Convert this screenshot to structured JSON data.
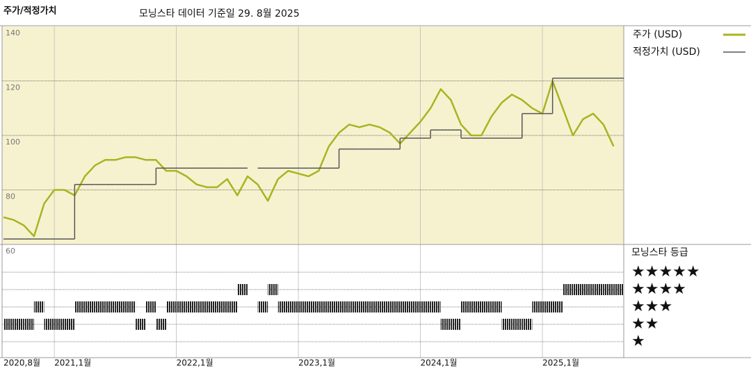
{
  "chart_data": [
    {
      "type": "line",
      "title": "주가/적정가치",
      "subtitle": "모닝스타 데이터 기준일 29. 8월 2025",
      "background": "#f6f2cf",
      "grid": true,
      "x": [
        "2020-08",
        "2020-09",
        "2020-10",
        "2020-11",
        "2020-12",
        "2021-01",
        "2021-02",
        "2021-03",
        "2021-04",
        "2021-05",
        "2021-06",
        "2021-07",
        "2021-08",
        "2021-09",
        "2021-10",
        "2021-11",
        "2021-12",
        "2022-01",
        "2022-02",
        "2022-03",
        "2022-04",
        "2022-05",
        "2022-06",
        "2022-07",
        "2022-08",
        "2022-09",
        "2022-10",
        "2022-11",
        "2022-12",
        "2023-01",
        "2023-02",
        "2023-03",
        "2023-04",
        "2023-05",
        "2023-06",
        "2023-07",
        "2023-08",
        "2023-09",
        "2023-10",
        "2023-11",
        "2023-12",
        "2024-01",
        "2024-02",
        "2024-03",
        "2024-04",
        "2024-05",
        "2024-06",
        "2024-07",
        "2024-08",
        "2024-09",
        "2024-10",
        "2024-11",
        "2024-12",
        "2025-01",
        "2025-02",
        "2025-03",
        "2025-04",
        "2025-05",
        "2025-06",
        "2025-07",
        "2025-08"
      ],
      "series": [
        {
          "name": "주가 (USD)",
          "color": "#a9b321",
          "line_shape": "linear",
          "values": [
            70,
            69,
            67,
            63,
            75,
            80,
            80,
            78,
            85,
            89,
            91,
            91,
            92,
            92,
            91,
            91,
            87,
            87,
            85,
            82,
            81,
            81,
            84,
            78,
            85,
            82,
            76,
            84,
            87,
            86,
            85,
            87,
            96,
            101,
            104,
            103,
            104,
            103,
            101,
            97,
            101,
            105,
            110,
            117,
            113,
            104,
            100,
            100,
            107,
            112,
            115,
            113,
            110,
            108,
            120,
            110,
            100,
            106,
            108,
            104,
            96
          ]
        },
        {
          "name": "적정가치 (USD)",
          "color": "#555555",
          "line_shape": "step",
          "values": [
            62,
            62,
            62,
            62,
            62,
            62,
            62,
            82,
            82,
            82,
            82,
            82,
            82,
            82,
            82,
            88,
            88,
            88,
            88,
            88,
            88,
            88,
            88,
            88,
            null,
            88,
            88,
            88,
            88,
            88,
            88,
            88,
            88,
            95,
            95,
            95,
            95,
            95,
            95,
            99,
            99,
            99,
            102,
            102,
            102,
            99,
            99,
            99,
            99,
            99,
            99,
            108,
            108,
            108,
            121,
            121,
            121,
            121,
            121,
            121,
            121
          ]
        }
      ],
      "xlim": [
        "2020-08",
        "2025-09"
      ],
      "ylim": [
        60,
        140
      ],
      "yticks": [
        60,
        80,
        100,
        120,
        140
      ]
    },
    {
      "type": "rating",
      "title": "모닝스타 등급",
      "color": "#222222",
      "levels": [
        {
          "value": 5,
          "label": "★★★★★"
        },
        {
          "value": 4,
          "label": "★★★★"
        },
        {
          "value": 3,
          "label": "★★★"
        },
        {
          "value": 2,
          "label": "★★"
        },
        {
          "value": 1,
          "label": "★"
        }
      ],
      "x": [
        "2020-08",
        "2020-09",
        "2020-10",
        "2020-11",
        "2020-12",
        "2021-01",
        "2021-02",
        "2021-03",
        "2021-04",
        "2021-05",
        "2021-06",
        "2021-07",
        "2021-08",
        "2021-09",
        "2021-10",
        "2021-11",
        "2021-12",
        "2022-01",
        "2022-02",
        "2022-03",
        "2022-04",
        "2022-05",
        "2022-06",
        "2022-07",
        "2022-08",
        "2022-09",
        "2022-10",
        "2022-11",
        "2022-12",
        "2023-01",
        "2023-02",
        "2023-03",
        "2023-04",
        "2023-05",
        "2023-06",
        "2023-07",
        "2023-08",
        "2023-09",
        "2023-10",
        "2023-11",
        "2023-12",
        "2024-01",
        "2024-02",
        "2024-03",
        "2024-04",
        "2024-05",
        "2024-06",
        "2024-07",
        "2024-08",
        "2024-09",
        "2024-10",
        "2024-11",
        "2024-12",
        "2025-01",
        "2025-02",
        "2025-03",
        "2025-04",
        "2025-05",
        "2025-06",
        "2025-07",
        "2025-08"
      ],
      "values": [
        2,
        2,
        2,
        3,
        2,
        2,
        2,
        3,
        3,
        3,
        3,
        3,
        3,
        2,
        3,
        2,
        3,
        3,
        3,
        3,
        3,
        3,
        3,
        4,
        null,
        3,
        4,
        3,
        3,
        3,
        3,
        3,
        3,
        3,
        3,
        3,
        3,
        3,
        3,
        3,
        3,
        3,
        3,
        2,
        2,
        3,
        3,
        3,
        3,
        2,
        2,
        2,
        3,
        3,
        3,
        4,
        4,
        4,
        4,
        4,
        4
      ],
      "xlim": [
        "2020-08",
        "2025-09"
      ],
      "xticks": [
        {
          "value": "2020-08",
          "label": "2020,8월"
        },
        {
          "value": "2021-01",
          "label": "2021,1월"
        },
        {
          "value": "2022-01",
          "label": "2022,1월"
        },
        {
          "value": "2023-01",
          "label": "2023,1월"
        },
        {
          "value": "2024-01",
          "label": "2024,1월"
        },
        {
          "value": "2025-01",
          "label": "2025,1월"
        }
      ]
    }
  ]
}
